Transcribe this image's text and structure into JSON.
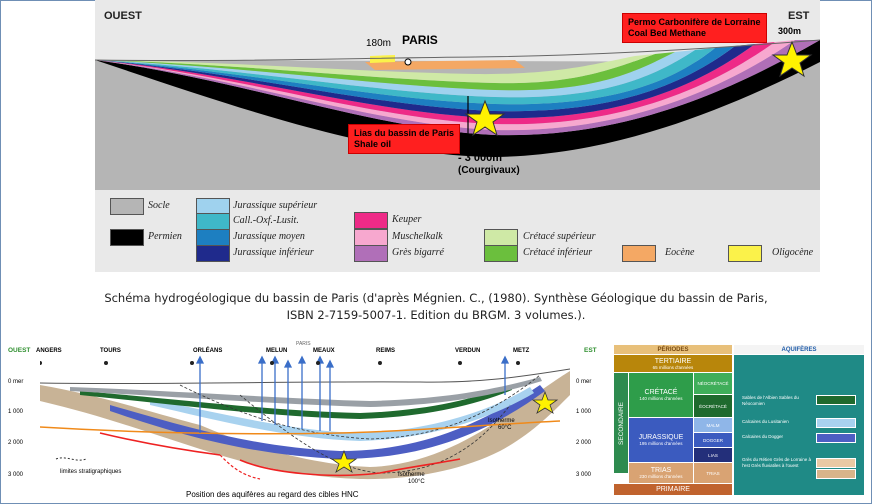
{
  "top_section": {
    "west_label": "OUEST",
    "east_label": "EST",
    "paris_label": "PARIS",
    "altitude_left": "180m",
    "altitude_right": "300m",
    "depth_label": "- 3 000m",
    "depth_sub": "(Courgivaux)",
    "callout_east": [
      "Permo Carbonifère de Lorraine",
      "Coal Bed Methane"
    ],
    "callout_center": [
      "Lias du bassin de Paris",
      "Shale oil"
    ]
  },
  "legend": [
    {
      "label": "Socle",
      "color": "#b5b5b5"
    },
    {
      "label": "Permien",
      "color": "#000000"
    },
    {
      "label": "Jurassique supérieur",
      "color": "#9fd2ee"
    },
    {
      "label": "Call.-Oxf.-Lusit.",
      "color": "#3fb8c8"
    },
    {
      "label": "Jurassique moyen",
      "color": "#1d7fc1"
    },
    {
      "label": "Jurassique inférieur",
      "color": "#1f2a8c"
    },
    {
      "label": "Keuper",
      "color": "#ee2a87"
    },
    {
      "label": "Muschelkalk",
      "color": "#f7a8cf"
    },
    {
      "label": "Grès bigarré",
      "color": "#b06fb8"
    },
    {
      "label": "Crétacé supérieur",
      "color": "#cfe9a6"
    },
    {
      "label": "Crétacé inférieur",
      "color": "#6bbf3d"
    },
    {
      "label": "Eocène",
      "color": "#f4a864"
    },
    {
      "label": "Oligocène",
      "color": "#fbf24a"
    }
  ],
  "caption_line1": "Schéma hydrogéologique du bassin de Paris (d'après Mégnien. C., (1980). Synthèse Géologique du bassin de Paris,",
  "caption_line2": "ISBN 2-7159-5007-1. Edition du BRGM. 3 volumes.).",
  "bottom_section": {
    "west_label": "OUEST",
    "east_label": "EST",
    "cities": [
      "ANGERS",
      "TOURS",
      "ORLÉANS",
      "MELUN",
      "MEAUX",
      "REIMS",
      "VERDUN",
      "METZ"
    ],
    "paris_small": "PARIS",
    "depth_ticks": [
      "0 mer",
      "1 000",
      "2 000",
      "3 000"
    ],
    "isotherm_60": [
      "Isotherme",
      "60°C"
    ],
    "isotherm_100": [
      "Isotherme",
      "100°C"
    ],
    "strat_limits": "limites stratigraphiques",
    "caption": "Position des aquifères au regard des cibles HNC"
  },
  "table": {
    "head_periods": "PÉRIODES",
    "head_aquifers": "AQUIFÈRES",
    "tertiaire": "TERTIAIRE",
    "tertiaire_sub": "65 millions d'années",
    "secondaire": "SECONDAIRE",
    "cretace": "CRÉTACÉ",
    "cretace_sub": "140 millions d'années",
    "neocretace": "NÉOCRÉTACÉ",
    "eocretace": "ÉOCRÉTACÉ",
    "jurassique": "JURASSIQUE",
    "jurassique_sub": "195 millions d'années",
    "malm": "MALM",
    "dogger": "DOGGER",
    "lias": "LIAS",
    "trias": "TRIAS",
    "trias_sub": "230 millions d'années",
    "trias_right": "TRIAS",
    "primaire": "PRIMAIRE",
    "aquifers": [
      {
        "label": "Sables de l'Albien Sables du Néocomien",
        "color": "#1f6a2e"
      },
      {
        "label": "Calcaires du Lusitanien",
        "color": "#a8d2ef"
      },
      {
        "label": "Calcaires du Dogger",
        "color": "#4d5ec3"
      },
      {
        "label": "Grès du Rétien Grès de Lorraine à l'est Grès fluviatiles à l'ouest",
        "color": "#e9c9a4"
      }
    ]
  }
}
